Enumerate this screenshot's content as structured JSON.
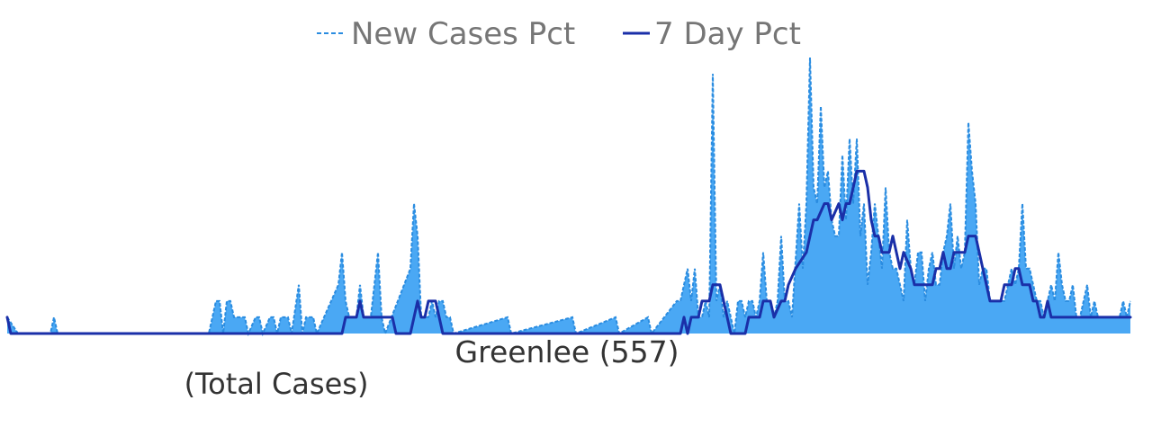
{
  "chart_data": {
    "type": "area",
    "title": "",
    "xlabel": "Greenlee (557)",
    "subtitle": "(Total Cases)",
    "ylabel": "",
    "grid": false,
    "legend_position": "top-center",
    "colors": {
      "new_cases_pct": "#4aa8f4",
      "new_cases_pct_line": "#2a8ce0",
      "seven_day_pct": "#1a2fa8"
    },
    "series": [
      {
        "name": "New Cases Pct",
        "style": "dashed-area",
        "points": [
          [
            0,
            1
          ],
          [
            3,
            0
          ],
          [
            12,
            0
          ],
          [
            13,
            1
          ],
          [
            14,
            0
          ],
          [
            56,
            0
          ],
          [
            57,
            1
          ],
          [
            58,
            2
          ],
          [
            59,
            2
          ],
          [
            60,
            0
          ],
          [
            61,
            2
          ],
          [
            62,
            2
          ],
          [
            63,
            1
          ],
          [
            64,
            1
          ],
          [
            65,
            1
          ],
          [
            66,
            1
          ],
          [
            67,
            0
          ],
          [
            69,
            1
          ],
          [
            70,
            1
          ],
          [
            71,
            0
          ],
          [
            73,
            1
          ],
          [
            74,
            1
          ],
          [
            75,
            0
          ],
          [
            76,
            1
          ],
          [
            77,
            1
          ],
          [
            78,
            1
          ],
          [
            79,
            0
          ],
          [
            81,
            3
          ],
          [
            82,
            0
          ],
          [
            83,
            1
          ],
          [
            84,
            1
          ],
          [
            85,
            1
          ],
          [
            86,
            0
          ],
          [
            92,
            3
          ],
          [
            93,
            5
          ],
          [
            94,
            2
          ],
          [
            95,
            1
          ],
          [
            96,
            1
          ],
          [
            97,
            1
          ],
          [
            98,
            3
          ],
          [
            99,
            1
          ],
          [
            100,
            1
          ],
          [
            101,
            1
          ],
          [
            102,
            3
          ],
          [
            103,
            5
          ],
          [
            104,
            1
          ],
          [
            105,
            0
          ],
          [
            112,
            4
          ],
          [
            113,
            8
          ],
          [
            114,
            6
          ],
          [
            115,
            1
          ],
          [
            116,
            1
          ],
          [
            117,
            1
          ],
          [
            118,
            2
          ],
          [
            119,
            1
          ],
          [
            120,
            2
          ],
          [
            121,
            2
          ],
          [
            122,
            1
          ],
          [
            123,
            1
          ],
          [
            124,
            0
          ],
          [
            139,
            1
          ],
          [
            140,
            0
          ],
          [
            157,
            1
          ],
          [
            158,
            0
          ],
          [
            169,
            1
          ],
          [
            170,
            0
          ],
          [
            178,
            1
          ],
          [
            179,
            0
          ],
          [
            186,
            2
          ],
          [
            187,
            2
          ],
          [
            188,
            3
          ],
          [
            189,
            4
          ],
          [
            190,
            2
          ],
          [
            191,
            4
          ],
          [
            192,
            1
          ],
          [
            193,
            1
          ],
          [
            194,
            2
          ],
          [
            195,
            1
          ],
          [
            196,
            16
          ],
          [
            197,
            2
          ],
          [
            198,
            3
          ],
          [
            199,
            1
          ],
          [
            200,
            2
          ],
          [
            201,
            1
          ],
          [
            202,
            0
          ],
          [
            203,
            2
          ],
          [
            204,
            2
          ],
          [
            205,
            1
          ],
          [
            206,
            2
          ],
          [
            207,
            2
          ],
          [
            208,
            1
          ],
          [
            209,
            2
          ],
          [
            210,
            5
          ],
          [
            211,
            2
          ],
          [
            212,
            2
          ],
          [
            213,
            1
          ],
          [
            214,
            2
          ],
          [
            215,
            6
          ],
          [
            216,
            2
          ],
          [
            217,
            2
          ],
          [
            218,
            1
          ],
          [
            220,
            8
          ],
          [
            221,
            4
          ],
          [
            222,
            8
          ],
          [
            223,
            17
          ],
          [
            224,
            9
          ],
          [
            225,
            8
          ],
          [
            226,
            14
          ],
          [
            227,
            9
          ],
          [
            228,
            10
          ],
          [
            229,
            7
          ],
          [
            230,
            6
          ],
          [
            231,
            6
          ],
          [
            232,
            11
          ],
          [
            233,
            7
          ],
          [
            234,
            12
          ],
          [
            235,
            8
          ],
          [
            236,
            12
          ],
          [
            237,
            6
          ],
          [
            238,
            8
          ],
          [
            239,
            3
          ],
          [
            240,
            5
          ],
          [
            241,
            8
          ],
          [
            242,
            6
          ],
          [
            243,
            4
          ],
          [
            244,
            9
          ],
          [
            245,
            5
          ],
          [
            246,
            4
          ],
          [
            247,
            4
          ],
          [
            248,
            3
          ],
          [
            249,
            2
          ],
          [
            250,
            7
          ],
          [
            251,
            4
          ],
          [
            252,
            3
          ],
          [
            253,
            5
          ],
          [
            254,
            5
          ],
          [
            255,
            2
          ],
          [
            256,
            4
          ],
          [
            257,
            5
          ],
          [
            258,
            3
          ],
          [
            259,
            3
          ],
          [
            260,
            5
          ],
          [
            261,
            6
          ],
          [
            262,
            8
          ],
          [
            263,
            4
          ],
          [
            264,
            6
          ],
          [
            265,
            4
          ],
          [
            266,
            5
          ],
          [
            267,
            13
          ],
          [
            268,
            10
          ],
          [
            269,
            8
          ],
          [
            270,
            3
          ],
          [
            271,
            4
          ],
          [
            272,
            4
          ],
          [
            273,
            2
          ],
          [
            274,
            2
          ],
          [
            275,
            2
          ],
          [
            276,
            2
          ],
          [
            277,
            2
          ],
          [
            278,
            3
          ],
          [
            279,
            4
          ],
          [
            280,
            3
          ],
          [
            281,
            4
          ],
          [
            282,
            8
          ],
          [
            283,
            4
          ],
          [
            284,
            4
          ],
          [
            285,
            3
          ],
          [
            286,
            2
          ],
          [
            287,
            2
          ],
          [
            288,
            1
          ],
          [
            289,
            2
          ],
          [
            290,
            3
          ],
          [
            291,
            2
          ],
          [
            292,
            5
          ],
          [
            293,
            3
          ],
          [
            294,
            2
          ],
          [
            295,
            2
          ],
          [
            296,
            3
          ],
          [
            297,
            1
          ],
          [
            298,
            1
          ],
          [
            299,
            2
          ],
          [
            300,
            3
          ],
          [
            301,
            1
          ],
          [
            302,
            2
          ],
          [
            303,
            1
          ],
          [
            304,
            1
          ],
          [
            305,
            1
          ],
          [
            306,
            1
          ],
          [
            307,
            1
          ],
          [
            308,
            1
          ],
          [
            309,
            1
          ],
          [
            310,
            2
          ],
          [
            311,
            1
          ],
          [
            312,
            2
          ]
        ]
      },
      {
        "name": "7 Day Pct",
        "style": "solid-line",
        "points": [
          [
            0,
            1
          ],
          [
            1,
            0
          ],
          [
            93,
            0
          ],
          [
            94,
            1
          ],
          [
            97,
            1
          ],
          [
            98,
            2
          ],
          [
            99,
            1
          ],
          [
            107,
            1
          ],
          [
            108,
            0
          ],
          [
            112,
            0
          ],
          [
            113,
            1
          ],
          [
            114,
            2
          ],
          [
            115,
            1
          ],
          [
            116,
            1
          ],
          [
            117,
            2
          ],
          [
            119,
            2
          ],
          [
            120,
            1
          ],
          [
            121,
            0
          ],
          [
            187,
            0
          ],
          [
            188,
            1
          ],
          [
            189,
            0
          ],
          [
            190,
            1
          ],
          [
            192,
            1
          ],
          [
            193,
            2
          ],
          [
            195,
            2
          ],
          [
            196,
            3
          ],
          [
            198,
            3
          ],
          [
            199,
            2
          ],
          [
            200,
            1
          ],
          [
            201,
            0
          ],
          [
            203,
            0
          ],
          [
            204,
            0
          ],
          [
            205,
            0
          ],
          [
            206,
            1
          ],
          [
            208,
            1
          ],
          [
            209,
            1
          ],
          [
            210,
            2
          ],
          [
            212,
            2
          ],
          [
            213,
            1
          ],
          [
            215,
            2
          ],
          [
            216,
            2
          ],
          [
            217,
            3
          ],
          [
            219,
            4
          ],
          [
            222,
            5
          ],
          [
            223,
            6
          ],
          [
            224,
            7
          ],
          [
            225,
            7
          ],
          [
            227,
            8
          ],
          [
            228,
            8
          ],
          [
            229,
            7
          ],
          [
            231,
            8
          ],
          [
            232,
            7
          ],
          [
            233,
            8
          ],
          [
            234,
            8
          ],
          [
            235,
            9
          ],
          [
            236,
            10
          ],
          [
            237,
            10
          ],
          [
            238,
            10
          ],
          [
            239,
            9
          ],
          [
            240,
            7
          ],
          [
            241,
            6
          ],
          [
            242,
            6
          ],
          [
            243,
            5
          ],
          [
            244,
            5
          ],
          [
            245,
            5
          ],
          [
            246,
            6
          ],
          [
            247,
            5
          ],
          [
            248,
            4
          ],
          [
            249,
            5
          ],
          [
            251,
            4
          ],
          [
            252,
            3
          ],
          [
            253,
            3
          ],
          [
            256,
            3
          ],
          [
            257,
            3
          ],
          [
            258,
            4
          ],
          [
            259,
            4
          ],
          [
            260,
            5
          ],
          [
            261,
            4
          ],
          [
            262,
            4
          ],
          [
            263,
            5
          ],
          [
            266,
            5
          ],
          [
            267,
            6
          ],
          [
            268,
            6
          ],
          [
            269,
            6
          ],
          [
            270,
            5
          ],
          [
            271,
            4
          ],
          [
            272,
            3
          ],
          [
            273,
            2
          ],
          [
            274,
            2
          ],
          [
            275,
            2
          ],
          [
            276,
            2
          ],
          [
            277,
            3
          ],
          [
            279,
            3
          ],
          [
            280,
            4
          ],
          [
            281,
            4
          ],
          [
            282,
            3
          ],
          [
            283,
            3
          ],
          [
            284,
            3
          ],
          [
            285,
            2
          ],
          [
            286,
            2
          ],
          [
            287,
            1
          ],
          [
            288,
            1
          ],
          [
            289,
            2
          ],
          [
            290,
            1
          ],
          [
            291,
            1
          ],
          [
            292,
            1
          ],
          [
            293,
            1
          ],
          [
            312,
            1
          ]
        ]
      }
    ]
  }
}
